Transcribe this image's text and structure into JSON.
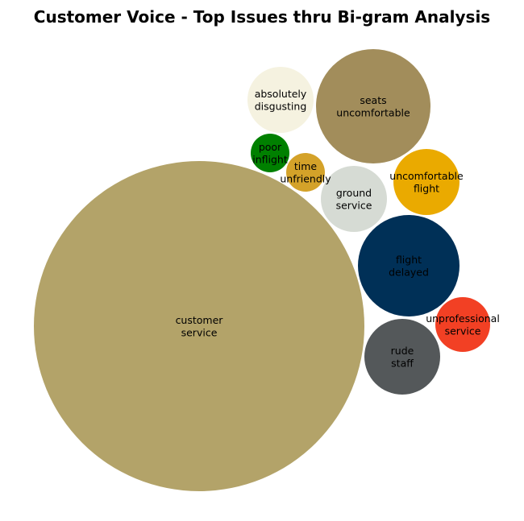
{
  "chart_data": {
    "type": "bubble",
    "title": "Customer Voice - Top Issues thru Bi-gram Analysis",
    "bubbles": [
      {
        "label": [
          "customer",
          "service"
        ],
        "color": "#b3a369"
      },
      {
        "label": [
          "seats",
          "uncomfortable"
        ],
        "color": "#a28d5b"
      },
      {
        "label": [
          "flight",
          "delayed"
        ],
        "color": "#003057"
      },
      {
        "label": [
          "rude",
          "staff"
        ],
        "color": "#54585a"
      },
      {
        "label": [
          "uncomfortable",
          "flight"
        ],
        "color": "#eaaa00"
      },
      {
        "label": [
          "absolutely",
          "disgusting"
        ],
        "color": "#f5f2e0"
      },
      {
        "label": [
          "ground",
          "service"
        ],
        "color": "#d6dbd4"
      },
      {
        "label": [
          "unprofessional",
          "service"
        ],
        "color": "#f24024"
      },
      {
        "label": [
          "poor",
          "inflight"
        ],
        "color": "#008000"
      },
      {
        "label": [
          "time",
          "unfriendly"
        ],
        "color": "#d4a229"
      }
    ]
  }
}
